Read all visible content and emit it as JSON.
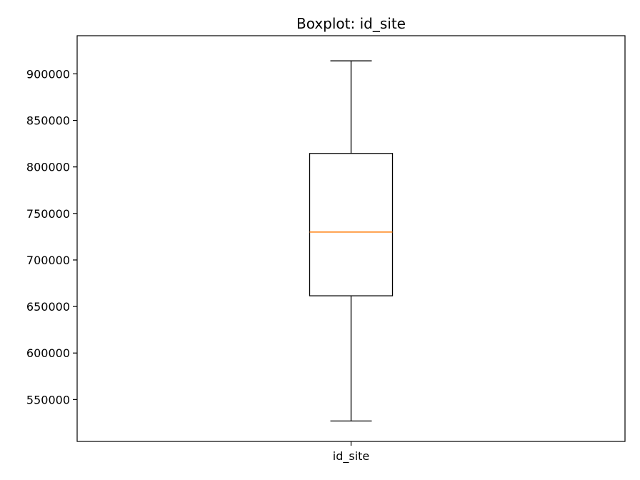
{
  "chart_data": {
    "type": "boxplot",
    "title": "Boxplot: id_site",
    "xlabel": "",
    "ylabel": "",
    "categories": [
      "id_site"
    ],
    "series": [
      {
        "whisker_low": 527000,
        "q1": 661500,
        "median": 730000,
        "q3": 814500,
        "whisker_high": 914000
      }
    ],
    "yticks": [
      550000,
      600000,
      650000,
      700000,
      750000,
      800000,
      850000,
      900000
    ],
    "ylim": [
      505000,
      941000
    ],
    "grid": false,
    "colors": {
      "box": "#000000",
      "median": "#ff7f0e"
    }
  }
}
